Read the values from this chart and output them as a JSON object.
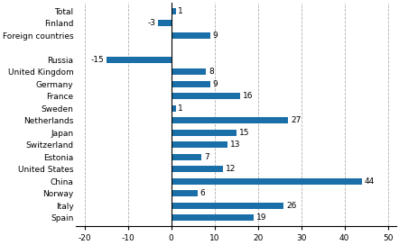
{
  "categories": [
    "Total",
    "Finland",
    "Foreign countries",
    "",
    "Russia",
    "United Kingdom",
    "Germany",
    "France",
    "Sweden",
    "Netherlands",
    "Japan",
    "Switzerland",
    "Estonia",
    "United States",
    "China",
    "Norway",
    "Italy",
    "Spain"
  ],
  "values": [
    1,
    -3,
    9,
    null,
    -15,
    8,
    9,
    16,
    1,
    27,
    15,
    13,
    7,
    12,
    44,
    6,
    26,
    19
  ],
  "bar_color": "#1a6fa8",
  "xlim": [
    -22,
    52
  ],
  "xticks": [
    -20,
    -10,
    0,
    10,
    20,
    30,
    40,
    50
  ],
  "grid_color": "#b0b0b0",
  "figsize": [
    4.42,
    2.72
  ],
  "dpi": 100,
  "bar_height": 0.55,
  "font_size": 6.5
}
